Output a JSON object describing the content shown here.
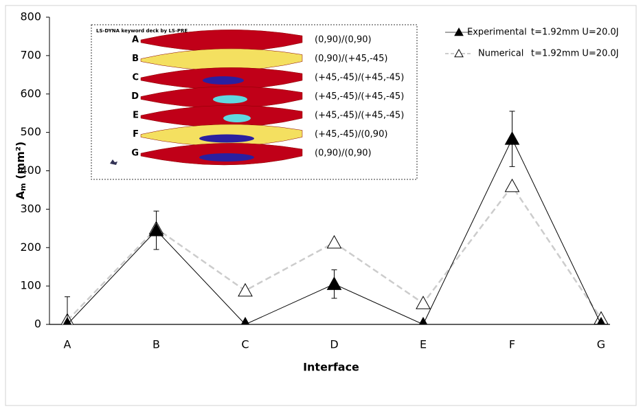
{
  "chart_data": {
    "type": "line",
    "y_label": {
      "main": "A",
      "sub": "m",
      "unit": "(mm²)"
    },
    "x_label": "Interface",
    "categories": [
      "A",
      "B",
      "C",
      "D",
      "E",
      "F",
      "G"
    ],
    "ylim": [
      0,
      800
    ],
    "yticks": [
      0,
      100,
      200,
      300,
      400,
      500,
      600,
      700,
      800
    ],
    "series": [
      {
        "name": "Experimental",
        "note": "t=1.92mm  U=20.0J",
        "color": "#000000",
        "dash": false,
        "filled": true,
        "values": [
          0,
          245,
          0,
          105,
          0,
          483,
          0
        ],
        "errors": [
          72,
          50,
          0,
          37,
          0,
          72,
          0
        ]
      },
      {
        "name": "Numerical",
        "note": "t=1.92mm  U=20.0J",
        "color": "#cccccc",
        "dash": true,
        "filled": false,
        "values": [
          10,
          250,
          88,
          213,
          55,
          360,
          15
        ]
      }
    ],
    "inset": {
      "caption": "LS-DYNA keyword deck by LS-PRE",
      "layers": [
        {
          "label": "A",
          "layup": "(0,90)/(0,90)",
          "color": "#c00018"
        },
        {
          "label": "B",
          "layup": "(0,90)/(+45,-45)",
          "color": "#f4e060"
        },
        {
          "label": "C",
          "layup": "(+45,-45)/(+45,-45)",
          "color": "#c00018"
        },
        {
          "label": "D",
          "layup": "(+45,-45)/(+45,-45)",
          "color": "#c00018"
        },
        {
          "label": "E",
          "layup": "(+45,-45)/(+45,-45)",
          "color": "#c00018"
        },
        {
          "label": "F",
          "layup": "(+45,-45)/(0,90)",
          "color": "#f4e060"
        },
        {
          "label": "G",
          "layup": "(0,90)/(0,90)",
          "color": "#c00018"
        }
      ]
    }
  }
}
